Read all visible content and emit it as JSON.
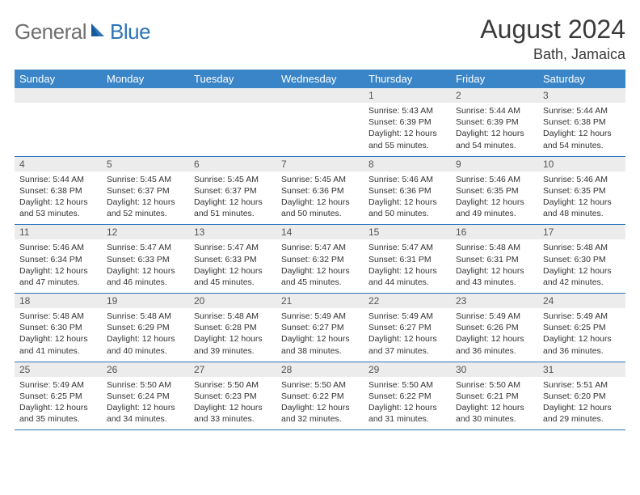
{
  "logo": {
    "general": "General",
    "blue": "Blue"
  },
  "title": "August 2024",
  "location": "Bath, Jamaica",
  "colors": {
    "header_bg": "#3a85c7",
    "header_text": "#ffffff",
    "daynum_bg": "#ececec",
    "daynum_text": "#555555",
    "body_text": "#333333",
    "rule": "#2b74b8",
    "logo_gray": "#6f6f6f",
    "logo_blue": "#2b74b8"
  },
  "weekdays": [
    "Sunday",
    "Monday",
    "Tuesday",
    "Wednesday",
    "Thursday",
    "Friday",
    "Saturday"
  ],
  "weeks": [
    [
      {
        "day": "",
        "lines": [
          "",
          "",
          "",
          ""
        ]
      },
      {
        "day": "",
        "lines": [
          "",
          "",
          "",
          ""
        ]
      },
      {
        "day": "",
        "lines": [
          "",
          "",
          "",
          ""
        ]
      },
      {
        "day": "",
        "lines": [
          "",
          "",
          "",
          ""
        ]
      },
      {
        "day": "1",
        "lines": [
          "Sunrise: 5:43 AM",
          "Sunset: 6:39 PM",
          "Daylight: 12 hours",
          "and 55 minutes."
        ]
      },
      {
        "day": "2",
        "lines": [
          "Sunrise: 5:44 AM",
          "Sunset: 6:39 PM",
          "Daylight: 12 hours",
          "and 54 minutes."
        ]
      },
      {
        "day": "3",
        "lines": [
          "Sunrise: 5:44 AM",
          "Sunset: 6:38 PM",
          "Daylight: 12 hours",
          "and 54 minutes."
        ]
      }
    ],
    [
      {
        "day": "4",
        "lines": [
          "Sunrise: 5:44 AM",
          "Sunset: 6:38 PM",
          "Daylight: 12 hours",
          "and 53 minutes."
        ]
      },
      {
        "day": "5",
        "lines": [
          "Sunrise: 5:45 AM",
          "Sunset: 6:37 PM",
          "Daylight: 12 hours",
          "and 52 minutes."
        ]
      },
      {
        "day": "6",
        "lines": [
          "Sunrise: 5:45 AM",
          "Sunset: 6:37 PM",
          "Daylight: 12 hours",
          "and 51 minutes."
        ]
      },
      {
        "day": "7",
        "lines": [
          "Sunrise: 5:45 AM",
          "Sunset: 6:36 PM",
          "Daylight: 12 hours",
          "and 50 minutes."
        ]
      },
      {
        "day": "8",
        "lines": [
          "Sunrise: 5:46 AM",
          "Sunset: 6:36 PM",
          "Daylight: 12 hours",
          "and 50 minutes."
        ]
      },
      {
        "day": "9",
        "lines": [
          "Sunrise: 5:46 AM",
          "Sunset: 6:35 PM",
          "Daylight: 12 hours",
          "and 49 minutes."
        ]
      },
      {
        "day": "10",
        "lines": [
          "Sunrise: 5:46 AM",
          "Sunset: 6:35 PM",
          "Daylight: 12 hours",
          "and 48 minutes."
        ]
      }
    ],
    [
      {
        "day": "11",
        "lines": [
          "Sunrise: 5:46 AM",
          "Sunset: 6:34 PM",
          "Daylight: 12 hours",
          "and 47 minutes."
        ]
      },
      {
        "day": "12",
        "lines": [
          "Sunrise: 5:47 AM",
          "Sunset: 6:33 PM",
          "Daylight: 12 hours",
          "and 46 minutes."
        ]
      },
      {
        "day": "13",
        "lines": [
          "Sunrise: 5:47 AM",
          "Sunset: 6:33 PM",
          "Daylight: 12 hours",
          "and 45 minutes."
        ]
      },
      {
        "day": "14",
        "lines": [
          "Sunrise: 5:47 AM",
          "Sunset: 6:32 PM",
          "Daylight: 12 hours",
          "and 45 minutes."
        ]
      },
      {
        "day": "15",
        "lines": [
          "Sunrise: 5:47 AM",
          "Sunset: 6:31 PM",
          "Daylight: 12 hours",
          "and 44 minutes."
        ]
      },
      {
        "day": "16",
        "lines": [
          "Sunrise: 5:48 AM",
          "Sunset: 6:31 PM",
          "Daylight: 12 hours",
          "and 43 minutes."
        ]
      },
      {
        "day": "17",
        "lines": [
          "Sunrise: 5:48 AM",
          "Sunset: 6:30 PM",
          "Daylight: 12 hours",
          "and 42 minutes."
        ]
      }
    ],
    [
      {
        "day": "18",
        "lines": [
          "Sunrise: 5:48 AM",
          "Sunset: 6:30 PM",
          "Daylight: 12 hours",
          "and 41 minutes."
        ]
      },
      {
        "day": "19",
        "lines": [
          "Sunrise: 5:48 AM",
          "Sunset: 6:29 PM",
          "Daylight: 12 hours",
          "and 40 minutes."
        ]
      },
      {
        "day": "20",
        "lines": [
          "Sunrise: 5:48 AM",
          "Sunset: 6:28 PM",
          "Daylight: 12 hours",
          "and 39 minutes."
        ]
      },
      {
        "day": "21",
        "lines": [
          "Sunrise: 5:49 AM",
          "Sunset: 6:27 PM",
          "Daylight: 12 hours",
          "and 38 minutes."
        ]
      },
      {
        "day": "22",
        "lines": [
          "Sunrise: 5:49 AM",
          "Sunset: 6:27 PM",
          "Daylight: 12 hours",
          "and 37 minutes."
        ]
      },
      {
        "day": "23",
        "lines": [
          "Sunrise: 5:49 AM",
          "Sunset: 6:26 PM",
          "Daylight: 12 hours",
          "and 36 minutes."
        ]
      },
      {
        "day": "24",
        "lines": [
          "Sunrise: 5:49 AM",
          "Sunset: 6:25 PM",
          "Daylight: 12 hours",
          "and 36 minutes."
        ]
      }
    ],
    [
      {
        "day": "25",
        "lines": [
          "Sunrise: 5:49 AM",
          "Sunset: 6:25 PM",
          "Daylight: 12 hours",
          "and 35 minutes."
        ]
      },
      {
        "day": "26",
        "lines": [
          "Sunrise: 5:50 AM",
          "Sunset: 6:24 PM",
          "Daylight: 12 hours",
          "and 34 minutes."
        ]
      },
      {
        "day": "27",
        "lines": [
          "Sunrise: 5:50 AM",
          "Sunset: 6:23 PM",
          "Daylight: 12 hours",
          "and 33 minutes."
        ]
      },
      {
        "day": "28",
        "lines": [
          "Sunrise: 5:50 AM",
          "Sunset: 6:22 PM",
          "Daylight: 12 hours",
          "and 32 minutes."
        ]
      },
      {
        "day": "29",
        "lines": [
          "Sunrise: 5:50 AM",
          "Sunset: 6:22 PM",
          "Daylight: 12 hours",
          "and 31 minutes."
        ]
      },
      {
        "day": "30",
        "lines": [
          "Sunrise: 5:50 AM",
          "Sunset: 6:21 PM",
          "Daylight: 12 hours",
          "and 30 minutes."
        ]
      },
      {
        "day": "31",
        "lines": [
          "Sunrise: 5:51 AM",
          "Sunset: 6:20 PM",
          "Daylight: 12 hours",
          "and 29 minutes."
        ]
      }
    ]
  ]
}
